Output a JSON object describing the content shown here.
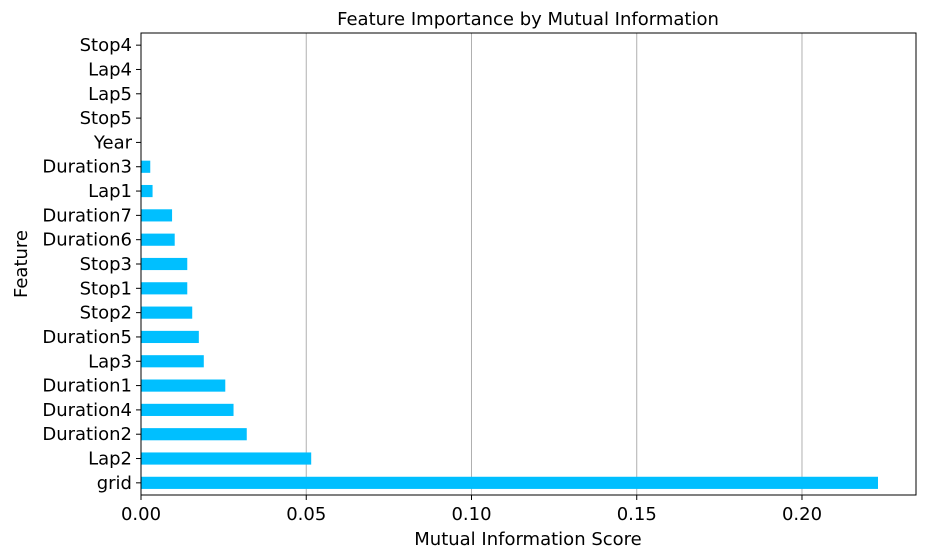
{
  "chart_data": {
    "type": "bar",
    "orientation": "horizontal",
    "title": "Feature Importance by Mutual Information",
    "xlabel": "Mutual Information Score",
    "ylabel": "Feature",
    "xlim": [
      0,
      0.2345
    ],
    "xticks": [
      0.0,
      0.05,
      0.1,
      0.15,
      0.2
    ],
    "xtick_labels": [
      "0.00",
      "0.05",
      "0.10",
      "0.15",
      "0.20"
    ],
    "grid": "vertical",
    "bar_color": "#00bfff",
    "categories": [
      "grid",
      "Lap2",
      "Duration2",
      "Duration4",
      "Duration1",
      "Lap3",
      "Duration5",
      "Stop2",
      "Stop1",
      "Stop3",
      "Duration6",
      "Duration7",
      "Lap1",
      "Duration3",
      "Year",
      "Stop5",
      "Lap5",
      "Lap4",
      "Stop4"
    ],
    "values": [
      0.223,
      0.0515,
      0.032,
      0.028,
      0.0255,
      0.019,
      0.0175,
      0.0155,
      0.014,
      0.014,
      0.0102,
      0.0094,
      0.0035,
      0.0028,
      0.0,
      0.0,
      0.0,
      0.0,
      0.0
    ]
  }
}
